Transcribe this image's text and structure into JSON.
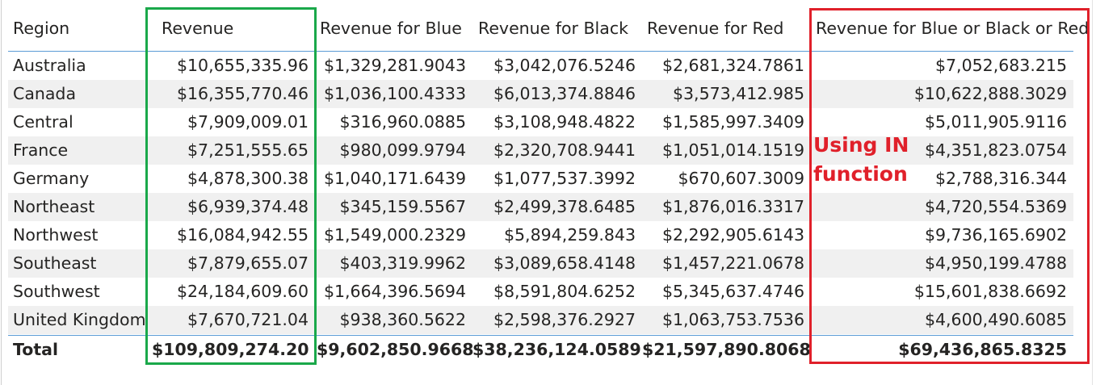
{
  "table": {
    "headers": [
      "Region",
      "Revenue",
      "Revenue for Blue",
      "Revenue for Black",
      "Revenue for Red",
      "Revenue for Blue or Black or Red"
    ],
    "rows": [
      [
        "Australia",
        "$10,655,335.96",
        "$1,329,281.9043",
        "$3,042,076.5246",
        "$2,681,324.7861",
        "$7,052,683.215"
      ],
      [
        "Canada",
        "$16,355,770.46",
        "$1,036,100.4333",
        "$6,013,374.8846",
        "$3,573,412.985",
        "$10,622,888.3029"
      ],
      [
        "Central",
        "$7,909,009.01",
        "$316,960.0885",
        "$3,108,948.4822",
        "$1,585,997.3409",
        "$5,011,905.9116"
      ],
      [
        "France",
        "$7,251,555.65",
        "$980,099.9794",
        "$2,320,708.9441",
        "$1,051,014.1519",
        "$4,351,823.0754"
      ],
      [
        "Germany",
        "$4,878,300.38",
        "$1,040,171.6439",
        "$1,077,537.3992",
        "$670,607.3009",
        "$2,788,316.344"
      ],
      [
        "Northeast",
        "$6,939,374.48",
        "$345,159.5567",
        "$2,499,378.6485",
        "$1,876,016.3317",
        "$4,720,554.5369"
      ],
      [
        "Northwest",
        "$16,084,942.55",
        "$1,549,000.2329",
        "$5,894,259.843",
        "$2,292,905.6143",
        "$9,736,165.6902"
      ],
      [
        "Southeast",
        "$7,879,655.07",
        "$403,319.9962",
        "$3,089,658.4148",
        "$1,457,221.0678",
        "$4,950,199.4788"
      ],
      [
        "Southwest",
        "$24,184,609.60",
        "$1,664,396.5694",
        "$8,591,804.6252",
        "$5,345,637.4746",
        "$15,601,838.6692"
      ],
      [
        "United Kingdom",
        "$7,670,721.04",
        "$938,360.5622",
        "$2,598,376.2927",
        "$1,063,753.7536",
        "$4,600,490.6085"
      ]
    ],
    "totals": [
      "Total",
      "$109,809,274.20",
      "$9,602,850.9668",
      "$38,236,124.0589",
      "$21,597,890.8068",
      "$69,436,865.8325"
    ]
  },
  "annotation": {
    "line1": "Using IN",
    "line2": "function",
    "color": "#e0202a"
  },
  "colors": {
    "green_box": "#1aa84a",
    "red_box": "#e0202a",
    "header_rule": "#5b9bd5",
    "row_band": "#f0f0f0"
  }
}
